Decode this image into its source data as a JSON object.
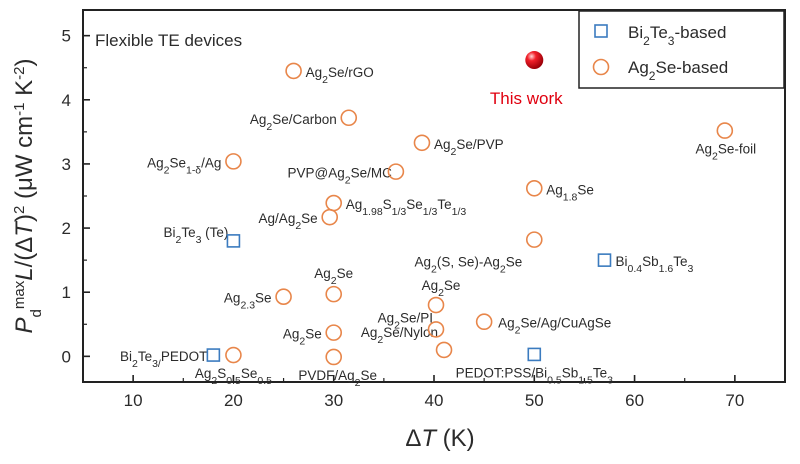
{
  "chart_data": {
    "type": "scatter",
    "title": "",
    "annotation": "Flexible TE devices",
    "xlabel": "ΔT (K)",
    "ylabel": "P_d^max L/(ΔT)^2 (μW cm^-1 K^-2)",
    "xlim": [
      5,
      75
    ],
    "ylim": [
      -0.4,
      5.4
    ],
    "xticks": [
      10,
      20,
      30,
      40,
      50,
      60,
      70
    ],
    "yticks": [
      0,
      1,
      2,
      3,
      4,
      5
    ],
    "grid": false,
    "legend_position": "top-right",
    "colors": {
      "bi2te3": "#3b7bbf",
      "ag2se": "#e8864a",
      "highlight": "#e0000f"
    },
    "series": [
      {
        "name": "Bi2Te3-based",
        "marker": "square",
        "points": [
          {
            "x": 20,
            "y": 1.8,
            "label": "Bi2Te3 (Te)"
          },
          {
            "x": 57,
            "y": 1.5,
            "label": "Bi0.4Sb1.6Te3"
          },
          {
            "x": 18,
            "y": 0.02,
            "label": "Bi2Te3/PEDOT"
          },
          {
            "x": 50,
            "y": 0.03,
            "label": "PEDOT:PSS/Bi0.5Sb1.5Te3"
          }
        ]
      },
      {
        "name": "Ag2Se-based",
        "marker": "circle",
        "points": [
          {
            "x": 26,
            "y": 4.45,
            "label": "Ag2Se/rGO"
          },
          {
            "x": 31.5,
            "y": 3.72,
            "label": "Ag2Se/Carbon"
          },
          {
            "x": 38.8,
            "y": 3.33,
            "label": "Ag2Se/PVP"
          },
          {
            "x": 69,
            "y": 3.52,
            "label": "Ag2Se-foil"
          },
          {
            "x": 20,
            "y": 3.04,
            "label": "Ag2Se1-δ/Ag"
          },
          {
            "x": 36.2,
            "y": 2.88,
            "label": "PVP@Ag2Se/MC"
          },
          {
            "x": 50,
            "y": 2.62,
            "label": "Ag1.8Se"
          },
          {
            "x": 30,
            "y": 2.39,
            "label": "Ag1.98S1/3Se1/3Te1/3"
          },
          {
            "x": 29.6,
            "y": 2.17,
            "label": "Ag/Ag2Se"
          },
          {
            "x": 50,
            "y": 1.82,
            "label": "Ag2(S, Se)-Ag2Se"
          },
          {
            "x": 30,
            "y": 0.97,
            "label": "Ag2Se"
          },
          {
            "x": 25,
            "y": 0.93,
            "label": "Ag2.3Se"
          },
          {
            "x": 40.2,
            "y": 0.8,
            "label": "Ag2Se"
          },
          {
            "x": 45,
            "y": 0.54,
            "label": "Ag2Se/Ag/CuAgSe"
          },
          {
            "x": 40.2,
            "y": 0.42,
            "label": "Ag2Se/PI"
          },
          {
            "x": 30,
            "y": 0.37,
            "label": "Ag2Se"
          },
          {
            "x": 41,
            "y": 0.1,
            "label": "Ag2Se/Nylon"
          },
          {
            "x": 20,
            "y": 0.02,
            "label": "Ag2S0.5Se0.5"
          },
          {
            "x": 30,
            "y": -0.01,
            "label": "PVDF/Ag2Se"
          }
        ]
      }
    ],
    "highlight": {
      "x": 50,
      "y": 4.62,
      "label": "This work"
    }
  },
  "figure": {
    "panel_letter": ""
  }
}
